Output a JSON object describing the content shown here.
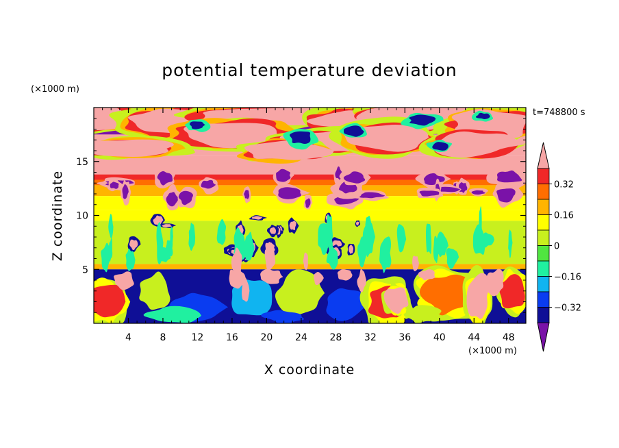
{
  "chart_data": {
    "type": "heatmap",
    "title": "potential temperature deviation",
    "xlabel": "X coordinate",
    "ylabel": "Z coordinate",
    "x_unit": "(×1000 m)",
    "y_unit": "(×1000 m)",
    "time_label": "t=748800 s",
    "xlim": [
      0,
      50
    ],
    "ylim": [
      0,
      20
    ],
    "x_ticks": [
      4,
      8,
      12,
      16,
      20,
      24,
      28,
      32,
      36,
      40,
      44,
      48
    ],
    "y_ticks": [
      5,
      10,
      15
    ],
    "colorbar": {
      "levels": [
        -0.4,
        -0.32,
        -0.24,
        -0.16,
        -0.08,
        0,
        0.08,
        0.16,
        0.24,
        0.32,
        0.4
      ],
      "labeled_values": [
        "0.32",
        "0.16",
        "0",
        "−0.16",
        "−0.32"
      ],
      "colors": [
        "#7a12a8",
        "#0f0f96",
        "#0a3cf0",
        "#10b4f0",
        "#20f0a0",
        "#50e640",
        "#c8f01e",
        "#ffff00",
        "#ffb400",
        "#ff6e00",
        "#f02828",
        "#f7a6a6"
      ],
      "extend": "both"
    },
    "bands": [
      {
        "z": [
          19.5,
          20
        ],
        "value": 0.45
      },
      {
        "z": [
          17.5,
          19.5
        ],
        "value": -0.45,
        "mixed_with": 0.45
      },
      {
        "z": [
          15.5,
          17.5
        ],
        "value": 0.45,
        "mixed_with": -0.45
      },
      {
        "z": [
          13.8,
          15.5
        ],
        "value": 0.45
      },
      {
        "z": [
          13.3,
          13.8
        ],
        "value": 0.36
      },
      {
        "z": [
          12.8,
          13.3
        ],
        "value": 0.28
      },
      {
        "z": [
          11.8,
          12.8
        ],
        "value": 0.2
      },
      {
        "z": [
          10.5,
          11.8
        ],
        "value": 0.12
      },
      {
        "z": [
          9.5,
          10.5
        ],
        "value": 0.1
      },
      {
        "z": [
          5.5,
          9.5
        ],
        "value": 0.02
      },
      {
        "z": [
          5.0,
          5.5
        ],
        "value": 0.2
      },
      {
        "z": [
          0,
          5.0
        ],
        "value": -0.35,
        "mixed_with": 0.45
      }
    ]
  }
}
